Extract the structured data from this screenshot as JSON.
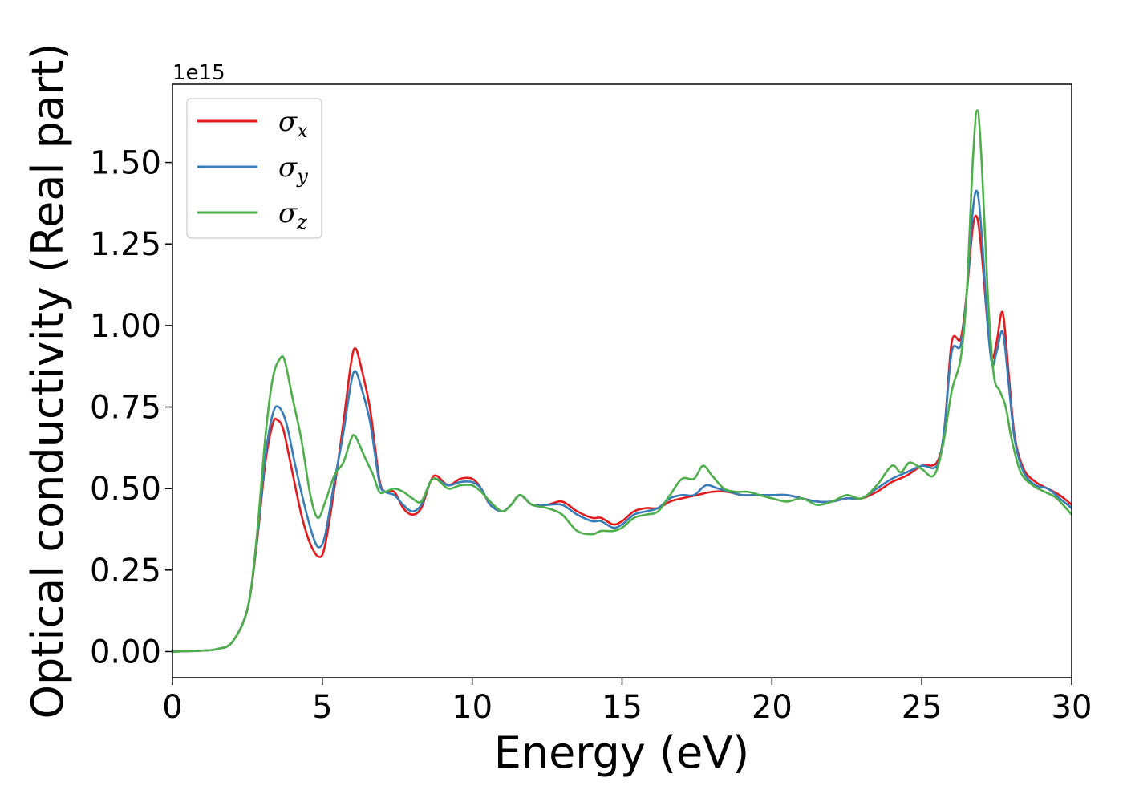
{
  "chart_data": {
    "type": "line",
    "xlabel": "Energy (eV)",
    "ylabel": "Optical conductivity (Real part)",
    "y_offset_label": "1e15",
    "xlim": [
      0,
      30
    ],
    "ylim": [
      -0.08,
      1.74
    ],
    "x_ticks": [
      0,
      5,
      10,
      15,
      20,
      25,
      30
    ],
    "x_tick_labels": [
      "0",
      "5",
      "10",
      "15",
      "20",
      "25",
      "30"
    ],
    "y_ticks": [
      0.0,
      0.25,
      0.5,
      0.75,
      1.0,
      1.25,
      1.5
    ],
    "y_tick_labels": [
      "0.00",
      "0.25",
      "0.50",
      "0.75",
      "1.00",
      "1.25",
      "1.50"
    ],
    "grid": false,
    "legend_position": "top-left",
    "series": [
      {
        "name": "σ",
        "subscript": "x",
        "color": "#e41a1c",
        "points": [
          [
            0,
            0
          ],
          [
            1,
            0.003
          ],
          [
            1.5,
            0.008
          ],
          [
            2,
            0.03
          ],
          [
            2.5,
            0.13
          ],
          [
            2.8,
            0.32
          ],
          [
            3.1,
            0.58
          ],
          [
            3.35,
            0.7
          ],
          [
            3.5,
            0.71
          ],
          [
            3.7,
            0.68
          ],
          [
            4,
            0.55
          ],
          [
            4.3,
            0.42
          ],
          [
            4.6,
            0.33
          ],
          [
            4.9,
            0.29
          ],
          [
            5.1,
            0.33
          ],
          [
            5.4,
            0.5
          ],
          [
            5.7,
            0.7
          ],
          [
            5.95,
            0.88
          ],
          [
            6.1,
            0.93
          ],
          [
            6.3,
            0.87
          ],
          [
            6.6,
            0.74
          ],
          [
            6.9,
            0.53
          ],
          [
            7.1,
            0.49
          ],
          [
            7.4,
            0.49
          ],
          [
            7.7,
            0.44
          ],
          [
            8.0,
            0.42
          ],
          [
            8.3,
            0.44
          ],
          [
            8.6,
            0.52
          ],
          [
            8.8,
            0.54
          ],
          [
            9.2,
            0.51
          ],
          [
            9.6,
            0.53
          ],
          [
            10.0,
            0.53
          ],
          [
            10.3,
            0.5
          ],
          [
            10.6,
            0.45
          ],
          [
            11.0,
            0.43
          ],
          [
            11.3,
            0.45
          ],
          [
            11.6,
            0.48
          ],
          [
            12.0,
            0.45
          ],
          [
            12.5,
            0.45
          ],
          [
            13.0,
            0.46
          ],
          [
            13.5,
            0.43
          ],
          [
            14.0,
            0.41
          ],
          [
            14.3,
            0.41
          ],
          [
            14.7,
            0.39
          ],
          [
            15.0,
            0.4
          ],
          [
            15.4,
            0.43
          ],
          [
            15.8,
            0.44
          ],
          [
            16.2,
            0.44
          ],
          [
            16.6,
            0.46
          ],
          [
            17.0,
            0.47
          ],
          [
            17.5,
            0.48
          ],
          [
            18.0,
            0.49
          ],
          [
            18.5,
            0.49
          ],
          [
            19.0,
            0.48
          ],
          [
            19.5,
            0.48
          ],
          [
            20.0,
            0.48
          ],
          [
            20.5,
            0.48
          ],
          [
            21.0,
            0.47
          ],
          [
            21.5,
            0.46
          ],
          [
            22.0,
            0.46
          ],
          [
            22.5,
            0.47
          ],
          [
            23.0,
            0.47
          ],
          [
            23.5,
            0.49
          ],
          [
            24.0,
            0.52
          ],
          [
            24.5,
            0.54
          ],
          [
            25.0,
            0.57
          ],
          [
            25.5,
            0.58
          ],
          [
            25.75,
            0.68
          ],
          [
            26.0,
            0.95
          ],
          [
            26.3,
            0.96
          ],
          [
            26.5,
            1.1
          ],
          [
            26.7,
            1.3
          ],
          [
            26.85,
            1.33
          ],
          [
            27.0,
            1.22
          ],
          [
            27.2,
            1.0
          ],
          [
            27.35,
            0.9
          ],
          [
            27.5,
            0.95
          ],
          [
            27.7,
            1.04
          ],
          [
            27.9,
            0.85
          ],
          [
            28.1,
            0.66
          ],
          [
            28.4,
            0.56
          ],
          [
            28.8,
            0.52
          ],
          [
            29.2,
            0.5
          ],
          [
            29.6,
            0.48
          ],
          [
            30.0,
            0.45
          ]
        ]
      },
      {
        "name": "σ",
        "subscript": "y",
        "color": "#377eb8",
        "points": [
          [
            0,
            0
          ],
          [
            1,
            0.003
          ],
          [
            1.5,
            0.008
          ],
          [
            2,
            0.03
          ],
          [
            2.5,
            0.13
          ],
          [
            2.8,
            0.33
          ],
          [
            3.1,
            0.6
          ],
          [
            3.35,
            0.73
          ],
          [
            3.55,
            0.75
          ],
          [
            3.8,
            0.7
          ],
          [
            4.1,
            0.57
          ],
          [
            4.4,
            0.45
          ],
          [
            4.7,
            0.35
          ],
          [
            4.9,
            0.32
          ],
          [
            5.1,
            0.36
          ],
          [
            5.4,
            0.52
          ],
          [
            5.7,
            0.67
          ],
          [
            5.95,
            0.82
          ],
          [
            6.1,
            0.86
          ],
          [
            6.3,
            0.81
          ],
          [
            6.6,
            0.7
          ],
          [
            6.9,
            0.52
          ],
          [
            7.1,
            0.49
          ],
          [
            7.4,
            0.48
          ],
          [
            7.7,
            0.45
          ],
          [
            8.0,
            0.43
          ],
          [
            8.3,
            0.45
          ],
          [
            8.6,
            0.52
          ],
          [
            8.8,
            0.53
          ],
          [
            9.2,
            0.51
          ],
          [
            9.6,
            0.52
          ],
          [
            10.0,
            0.52
          ],
          [
            10.3,
            0.5
          ],
          [
            10.6,
            0.45
          ],
          [
            11.0,
            0.43
          ],
          [
            11.3,
            0.45
          ],
          [
            11.6,
            0.48
          ],
          [
            12.0,
            0.45
          ],
          [
            12.5,
            0.45
          ],
          [
            13.0,
            0.45
          ],
          [
            13.5,
            0.42
          ],
          [
            14.0,
            0.4
          ],
          [
            14.3,
            0.4
          ],
          [
            14.7,
            0.38
          ],
          [
            15.0,
            0.39
          ],
          [
            15.4,
            0.42
          ],
          [
            15.8,
            0.43
          ],
          [
            16.2,
            0.44
          ],
          [
            16.6,
            0.47
          ],
          [
            17.0,
            0.48
          ],
          [
            17.4,
            0.48
          ],
          [
            17.8,
            0.51
          ],
          [
            18.2,
            0.5
          ],
          [
            18.6,
            0.49
          ],
          [
            19.0,
            0.48
          ],
          [
            19.5,
            0.48
          ],
          [
            20.0,
            0.48
          ],
          [
            20.5,
            0.48
          ],
          [
            21.0,
            0.47
          ],
          [
            21.5,
            0.46
          ],
          [
            22.0,
            0.46
          ],
          [
            22.5,
            0.47
          ],
          [
            23.0,
            0.47
          ],
          [
            23.5,
            0.5
          ],
          [
            24.0,
            0.53
          ],
          [
            24.5,
            0.55
          ],
          [
            25.0,
            0.57
          ],
          [
            25.5,
            0.57
          ],
          [
            25.75,
            0.68
          ],
          [
            26.0,
            0.92
          ],
          [
            26.3,
            0.94
          ],
          [
            26.5,
            1.1
          ],
          [
            26.7,
            1.35
          ],
          [
            26.85,
            1.41
          ],
          [
            27.0,
            1.28
          ],
          [
            27.2,
            1.0
          ],
          [
            27.35,
            0.88
          ],
          [
            27.5,
            0.92
          ],
          [
            27.7,
            0.98
          ],
          [
            27.9,
            0.82
          ],
          [
            28.1,
            0.65
          ],
          [
            28.4,
            0.55
          ],
          [
            28.8,
            0.51
          ],
          [
            29.2,
            0.5
          ],
          [
            29.6,
            0.47
          ],
          [
            30.0,
            0.44
          ]
        ]
      },
      {
        "name": "σ",
        "subscript": "z",
        "color": "#4daf4a",
        "points": [
          [
            0,
            0
          ],
          [
            1,
            0.003
          ],
          [
            1.5,
            0.008
          ],
          [
            2,
            0.03
          ],
          [
            2.5,
            0.13
          ],
          [
            2.8,
            0.34
          ],
          [
            3.1,
            0.66
          ],
          [
            3.35,
            0.84
          ],
          [
            3.6,
            0.9
          ],
          [
            3.75,
            0.89
          ],
          [
            4.0,
            0.78
          ],
          [
            4.3,
            0.65
          ],
          [
            4.6,
            0.48
          ],
          [
            4.85,
            0.41
          ],
          [
            5.1,
            0.46
          ],
          [
            5.4,
            0.54
          ],
          [
            5.7,
            0.58
          ],
          [
            5.95,
            0.65
          ],
          [
            6.1,
            0.66
          ],
          [
            6.4,
            0.6
          ],
          [
            6.7,
            0.54
          ],
          [
            6.9,
            0.49
          ],
          [
            7.1,
            0.49
          ],
          [
            7.4,
            0.5
          ],
          [
            7.7,
            0.49
          ],
          [
            8.0,
            0.47
          ],
          [
            8.3,
            0.46
          ],
          [
            8.6,
            0.52
          ],
          [
            8.8,
            0.53
          ],
          [
            9.2,
            0.5
          ],
          [
            9.6,
            0.51
          ],
          [
            10.0,
            0.51
          ],
          [
            10.3,
            0.49
          ],
          [
            10.6,
            0.46
          ],
          [
            11.0,
            0.43
          ],
          [
            11.3,
            0.45
          ],
          [
            11.6,
            0.48
          ],
          [
            12.0,
            0.45
          ],
          [
            12.5,
            0.44
          ],
          [
            13.0,
            0.42
          ],
          [
            13.5,
            0.37
          ],
          [
            14.0,
            0.36
          ],
          [
            14.3,
            0.37
          ],
          [
            14.7,
            0.37
          ],
          [
            15.0,
            0.38
          ],
          [
            15.4,
            0.41
          ],
          [
            15.8,
            0.42
          ],
          [
            16.2,
            0.43
          ],
          [
            16.6,
            0.48
          ],
          [
            17.0,
            0.53
          ],
          [
            17.4,
            0.53
          ],
          [
            17.7,
            0.57
          ],
          [
            18.0,
            0.54
          ],
          [
            18.4,
            0.5
          ],
          [
            18.8,
            0.49
          ],
          [
            19.2,
            0.49
          ],
          [
            19.6,
            0.48
          ],
          [
            20.0,
            0.47
          ],
          [
            20.5,
            0.46
          ],
          [
            21.0,
            0.47
          ],
          [
            21.5,
            0.45
          ],
          [
            22.0,
            0.46
          ],
          [
            22.5,
            0.48
          ],
          [
            23.0,
            0.47
          ],
          [
            23.5,
            0.51
          ],
          [
            24.0,
            0.57
          ],
          [
            24.3,
            0.55
          ],
          [
            24.6,
            0.58
          ],
          [
            25.0,
            0.56
          ],
          [
            25.4,
            0.54
          ],
          [
            25.7,
            0.63
          ],
          [
            26.0,
            0.8
          ],
          [
            26.3,
            0.9
          ],
          [
            26.5,
            1.1
          ],
          [
            26.7,
            1.5
          ],
          [
            26.85,
            1.66
          ],
          [
            27.0,
            1.5
          ],
          [
            27.2,
            1.1
          ],
          [
            27.4,
            0.85
          ],
          [
            27.6,
            0.8
          ],
          [
            27.8,
            0.75
          ],
          [
            28.0,
            0.65
          ],
          [
            28.3,
            0.55
          ],
          [
            28.7,
            0.51
          ],
          [
            29.1,
            0.49
          ],
          [
            29.5,
            0.47
          ],
          [
            30.0,
            0.42
          ]
        ]
      }
    ]
  }
}
